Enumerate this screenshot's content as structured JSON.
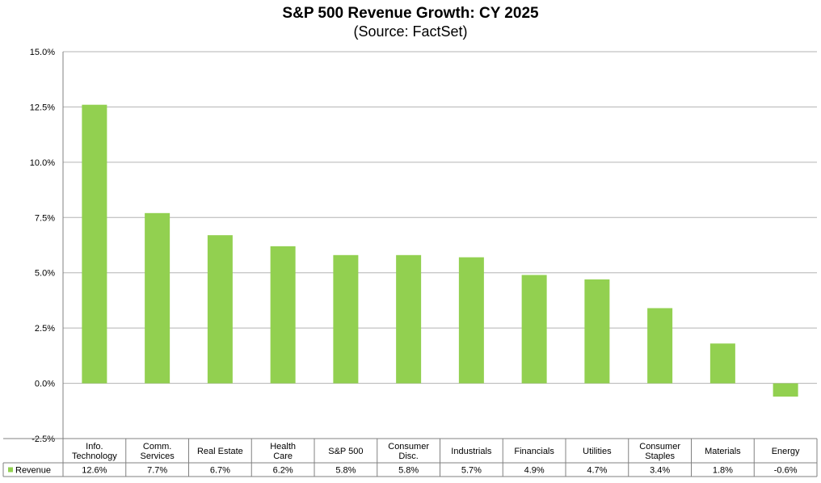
{
  "chart_data": {
    "type": "bar",
    "title": "S&P 500 Revenue Growth: CY 2025",
    "subtitle": "(Source: FactSet)",
    "categories": [
      [
        "Info.",
        "Technology"
      ],
      [
        "Comm.",
        "Services"
      ],
      [
        "Real Estate"
      ],
      [
        "Health",
        "Care"
      ],
      [
        "S&P 500"
      ],
      [
        "Consumer",
        "Disc."
      ],
      [
        "Industrials"
      ],
      [
        "Financials"
      ],
      [
        "Utilities"
      ],
      [
        "Consumer",
        "Staples"
      ],
      [
        "Materials"
      ],
      [
        "Energy"
      ]
    ],
    "series": [
      {
        "name": "Revenue",
        "values": [
          12.6,
          7.7,
          6.7,
          6.2,
          5.8,
          5.8,
          5.7,
          4.9,
          4.7,
          3.4,
          1.8,
          -0.6
        ],
        "labels": [
          "12.6%",
          "7.7%",
          "6.7%",
          "6.2%",
          "5.8%",
          "5.8%",
          "5.7%",
          "4.9%",
          "4.7%",
          "3.4%",
          "1.8%",
          "-0.6%"
        ],
        "color": "#92d050"
      }
    ],
    "yticks": [
      "15.0%",
      "12.5%",
      "10.0%",
      "7.5%",
      "5.0%",
      "2.5%",
      "0.0%",
      "-2.5%"
    ],
    "ytick_values": [
      15,
      12.5,
      10,
      7.5,
      5,
      2.5,
      0,
      -2.5
    ],
    "ylim": [
      -2.5,
      15
    ],
    "grid": true,
    "legend": "data-table"
  }
}
